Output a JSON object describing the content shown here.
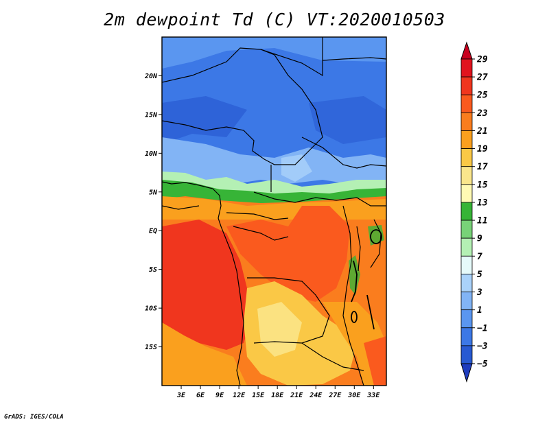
{
  "title": "2m dewpoint Td (C) VT:2020010503",
  "credit": "GrADS: IGES/COLA",
  "map": {
    "lon_range": [
      0,
      35
    ],
    "lat_range": [
      -20,
      25
    ],
    "lat_ticks": [
      {
        "value": 20,
        "label": "20N"
      },
      {
        "value": 15,
        "label": "15N"
      },
      {
        "value": 10,
        "label": "10N"
      },
      {
        "value": 5,
        "label": "5N"
      },
      {
        "value": 0,
        "label": "EQ"
      },
      {
        "value": -5,
        "label": "5S"
      },
      {
        "value": -10,
        "label": "10S"
      },
      {
        "value": -15,
        "label": "15S"
      }
    ],
    "lon_ticks": [
      {
        "value": 3,
        "label": "3E"
      },
      {
        "value": 6,
        "label": "6E"
      },
      {
        "value": 9,
        "label": "9E"
      },
      {
        "value": 12,
        "label": "12E"
      },
      {
        "value": 15,
        "label": "15E"
      },
      {
        "value": 18,
        "label": "18E"
      },
      {
        "value": 21,
        "label": "21E"
      },
      {
        "value": 24,
        "label": "24E"
      },
      {
        "value": 27,
        "label": "27E"
      },
      {
        "value": 30,
        "label": "30E"
      },
      {
        "value": 33,
        "label": "33E"
      }
    ]
  },
  "colorbar": {
    "labels": [
      "29",
      "27",
      "25",
      "23",
      "21",
      "19",
      "17",
      "15",
      "13",
      "11",
      "9",
      "7",
      "5",
      "3",
      "1",
      "−1",
      "−3",
      "−5"
    ],
    "colors": [
      "#c8001e",
      "#e1141e",
      "#f0361e",
      "#fa5a1e",
      "#fa7d1e",
      "#faa01e",
      "#fac846",
      "#fae68c",
      "#fffab4",
      "#37b437",
      "#78d278",
      "#b4f0b4",
      "#e6fafa",
      "#aad2fa",
      "#82b4f5",
      "#5a96f0",
      "#3c78e6",
      "#285ad2",
      "#1e3cbe"
    ]
  }
}
